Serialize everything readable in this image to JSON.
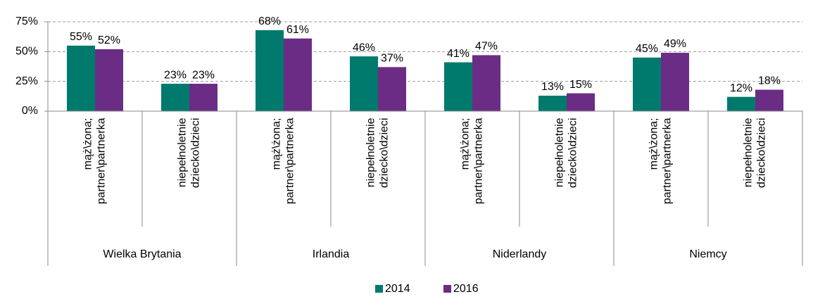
{
  "chart_data": {
    "type": "bar",
    "categories": [
      "mąż\\żona; partner\\partnerka",
      "niepełnoletnie dziecko\\dzieci",
      "mąż\\żona; partner\\partnerka",
      "niepełnoletnie dziecko\\dzieci",
      "mąż\\żona; partner\\partnerka",
      "niepełnoletnie dziecko\\dzieci",
      "mąż\\żona; partner\\partnerka",
      "niepełnoletnie dziecko\\dzieci"
    ],
    "groups": [
      "Wielka Brytania",
      "Irlandia",
      "Niderlandy",
      "Niemcy"
    ],
    "series": [
      {
        "name": "2014",
        "color": "#007a6c",
        "values": [
          55,
          23,
          68,
          46,
          41,
          13,
          45,
          12
        ],
        "value_labels": [
          "55%",
          "23%",
          "68%",
          "46%",
          "41%",
          "13%",
          "45%",
          "12%"
        ]
      },
      {
        "name": "2016",
        "color": "#6b2c86",
        "values": [
          52,
          23,
          61,
          37,
          47,
          15,
          49,
          18
        ],
        "value_labels": [
          "52%",
          "23%",
          "61%",
          "37%",
          "47%",
          "15%",
          "49%",
          "18%"
        ]
      }
    ],
    "ylim": [
      0,
      75
    ],
    "yticks": [
      {
        "value": 0,
        "label": "0%"
      },
      {
        "value": 25,
        "label": "25%"
      },
      {
        "value": 50,
        "label": "50%"
      },
      {
        "value": 75,
        "label": "75%"
      }
    ],
    "grid": true,
    "legend": "bottom"
  }
}
